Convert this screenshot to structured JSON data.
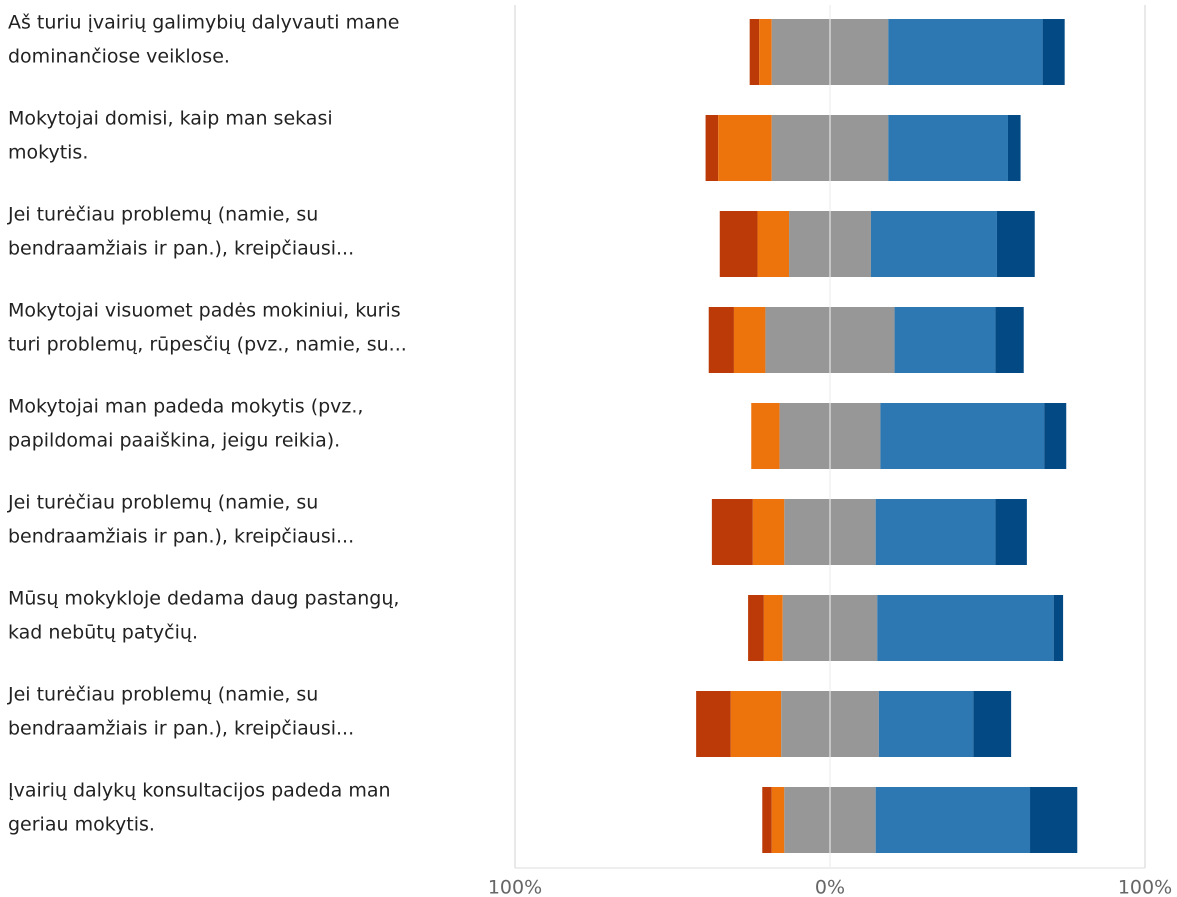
{
  "chart_data": {
    "type": "diverging_stacked_bar",
    "categories": [
      [
        "Aš turiu įvairių galimybių dalyvauti mane",
        "dominančiose veiklose."
      ],
      [
        "Mokytojai domisi, kaip man sekasi",
        "mokytis."
      ],
      [
        "Jei turėčiau problemų (namie, su",
        "bendraamžiais ir pan.), kreipčiausi..."
      ],
      [
        "Mokytojai visuomet padės mokiniui, kuris",
        "turi problemų, rūpesčių (pvz., namie, su..."
      ],
      [
        "Mokytojai man padeda mokytis (pvz.,",
        "papildomai paaiškina, jeigu reikia)."
      ],
      [
        "Jei turėčiau problemų (namie, su",
        "bendraamžiais ir pan.), kreipčiausi..."
      ],
      [
        "Mūsų mokykloje dedama daug pastangų,",
        "kad nebūtų patyčių."
      ],
      [
        "Jei turėčiau problemų (namie, su",
        "bendraamžiais ir pan.), kreipčiausi..."
      ],
      [
        "Įvairių dalykų konsultacijos padeda man",
        "geriau mokytis."
      ]
    ],
    "series": [
      {
        "color": "#bb3a07",
        "side": "negative",
        "values": [
          3,
          4,
          12,
          8,
          0,
          13,
          5,
          11,
          3
        ]
      },
      {
        "color": "#ed730d",
        "side": "negative",
        "values": [
          4,
          17,
          10,
          10,
          9,
          10,
          6,
          16,
          4
        ]
      },
      {
        "color": "#979797",
        "side": "neutral",
        "values": [
          37,
          37,
          26,
          41,
          32,
          29,
          30,
          31,
          29
        ]
      },
      {
        "color": "#2d78b2",
        "side": "positive",
        "values": [
          49,
          38,
          40,
          32,
          52,
          38,
          56,
          30,
          49
        ]
      },
      {
        "color": "#034a85",
        "side": "positive",
        "values": [
          7,
          4,
          12,
          9,
          7,
          10,
          3,
          12,
          15
        ]
      }
    ],
    "xlim": [
      -100,
      100
    ],
    "xticks": [
      {
        "value": -100,
        "label": "100%"
      },
      {
        "value": 0,
        "label": "0%"
      },
      {
        "value": 100,
        "label": "100%"
      }
    ],
    "grid": true
  }
}
